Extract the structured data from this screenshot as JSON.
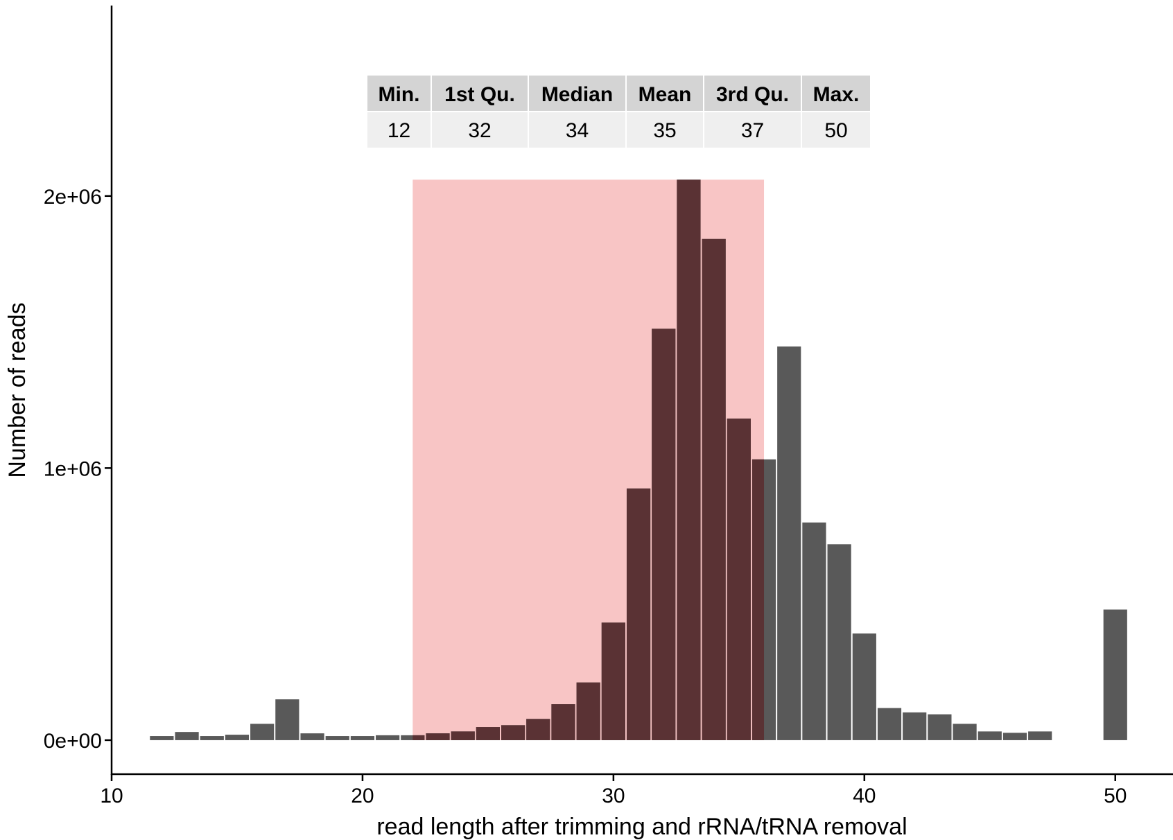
{
  "chart_data": {
    "type": "bar",
    "xlabel": "read length after trimming and rRNA/tRNA removal",
    "ylabel": "Number of reads",
    "xlim": [
      10,
      52.3
    ],
    "ylim": [
      -125000,
      2700000
    ],
    "x_ticks": [
      10,
      20,
      30,
      40,
      50
    ],
    "x_tick_labels": [
      "10",
      "20",
      "30",
      "40",
      "50"
    ],
    "y_ticks": [
      0,
      1000000,
      2000000
    ],
    "y_tick_labels": [
      "0e+00",
      "1e+06",
      "2e+06"
    ],
    "grid": false,
    "legend": "none",
    "bar_color": "#595959",
    "highlight": {
      "x_range": [
        22,
        36
      ],
      "y_top": 2060000,
      "color": "#f8c5c5"
    },
    "x": [
      12,
      13,
      14,
      15,
      16,
      17,
      18,
      19,
      20,
      21,
      22,
      23,
      24,
      25,
      26,
      27,
      28,
      29,
      30,
      31,
      32,
      33,
      34,
      35,
      36,
      37,
      38,
      39,
      40,
      41,
      42,
      43,
      44,
      45,
      46,
      47,
      50
    ],
    "values": [
      15000,
      30000,
      15000,
      20000,
      60000,
      150000,
      25000,
      15000,
      15000,
      18000,
      18000,
      25000,
      32000,
      48000,
      55000,
      78000,
      132000,
      212000,
      432000,
      925000,
      1512000,
      2060000,
      1842000,
      1182000,
      1032000,
      1447000,
      800000,
      720000,
      392000,
      118000,
      102000,
      95000,
      60000,
      32000,
      27000,
      32000,
      480000
    ],
    "summary_table": {
      "headers": [
        "Min.",
        "1st Qu.",
        "Median",
        "Mean",
        "3rd Qu.",
        "Max."
      ],
      "values": [
        "12",
        "32",
        "34",
        "35",
        "37",
        "50"
      ]
    }
  }
}
